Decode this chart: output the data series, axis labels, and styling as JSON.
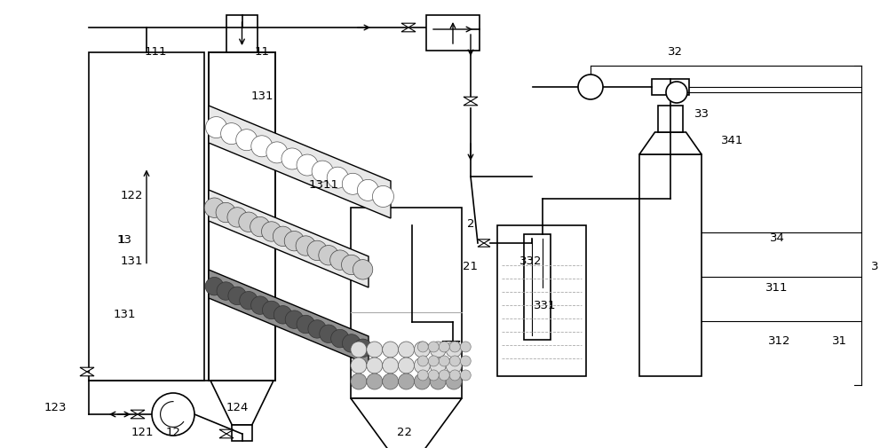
{
  "bg_color": "#ffffff",
  "line_color": "#000000",
  "lw": 1.2,
  "lw2": 0.8
}
